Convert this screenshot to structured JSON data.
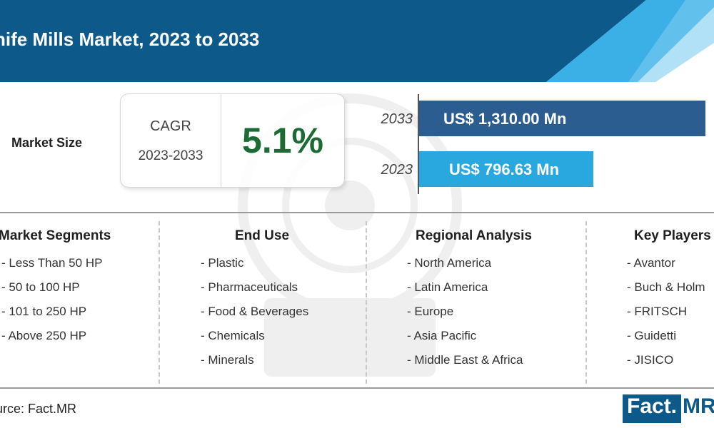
{
  "header": {
    "title": "nife Mills Market, 2023 to 2033"
  },
  "market_size": {
    "label": "Market Size",
    "cagr_label": "CAGR",
    "cagr_period": "2023-2033",
    "cagr_value": "5.1%"
  },
  "chart_data": {
    "type": "bar",
    "orientation": "horizontal",
    "categories": [
      "2033",
      "2023"
    ],
    "values": [
      1310.0,
      796.63
    ],
    "value_labels": [
      "US$ 1,310.00 Mn",
      "US$ 796.63 Mn"
    ],
    "unit": "US$ Mn",
    "colors": [
      "#2b5d90",
      "#29a8e0"
    ]
  },
  "segments": [
    {
      "title": "Market Segments",
      "items": [
        "- Less Than 50 HP",
        "- 50 to 100 HP",
        "- 101 to 250 HP",
        "- Above 250 HP"
      ]
    },
    {
      "title": "End Use",
      "items": [
        "- Plastic",
        "- Pharmaceuticals",
        "- Food & Beverages",
        "- Chemicals",
        "- Minerals"
      ]
    },
    {
      "title": "Regional Analysis",
      "items": [
        "- North America",
        "- Latin America",
        "- Europe",
        "- Asia Pacific",
        "- Middle East & Africa"
      ]
    },
    {
      "title": "Key Players",
      "items": [
        "- Avantor",
        "- Buch & Holm",
        "- FRITSCH",
        "- Guidetti",
        "- JISICO"
      ]
    }
  ],
  "footer": {
    "source": "urce: Fact.MR",
    "logo_left": "Fact.",
    "logo_right": "MR"
  },
  "colors": {
    "header_dark": "#0d5a8a",
    "header_light": "#29a8e0",
    "bar_2033": "#2b5d90",
    "bar_2023": "#29a8e0",
    "cagr_green": "#1d6b34"
  }
}
